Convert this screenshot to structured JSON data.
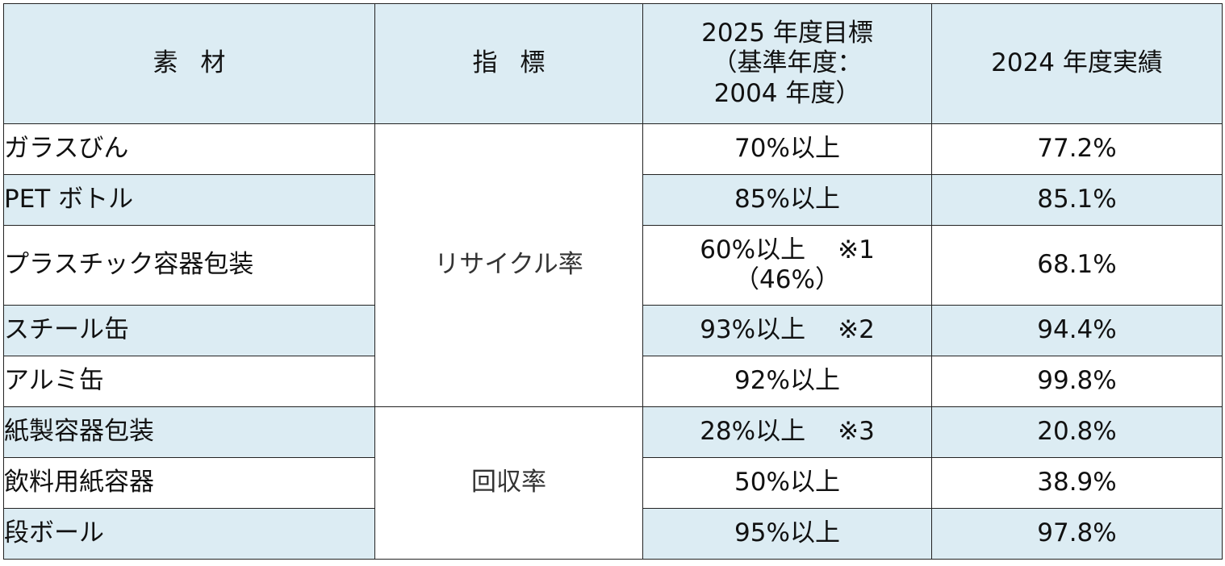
{
  "header": {
    "material": "素材",
    "indicator": "指標",
    "target_line1": "2025 年度目標",
    "target_line2": "（基準年度：",
    "target_line3": "2004 年度）",
    "result": "2024 年度実績"
  },
  "indicators": {
    "recycle": "リサイクル率",
    "collection": "回収率"
  },
  "rows": [
    {
      "material": "ガラスびん",
      "target": "70%以上",
      "note": "",
      "sub": "",
      "result": "77.2%"
    },
    {
      "material": "PET ボトル",
      "target": "85%以上",
      "note": "",
      "sub": "",
      "result": "85.1%"
    },
    {
      "material": "プラスチック容器包装",
      "target": "60%以上",
      "note": "※1",
      "sub": "（46%）",
      "result": "68.1%"
    },
    {
      "material": "スチール缶",
      "target": "93%以上",
      "note": "※2",
      "sub": "",
      "result": "94.4%"
    },
    {
      "material": "アルミ缶",
      "target": "92%以上",
      "note": "",
      "sub": "",
      "result": "99.8%"
    },
    {
      "material": "紙製容器包装",
      "target": "28%以上",
      "note": "※3",
      "sub": "",
      "result": "20.8%"
    },
    {
      "material": "飲料用紙容器",
      "target": "50%以上",
      "note": "",
      "sub": "",
      "result": "38.9%"
    },
    {
      "material": "段ボール",
      "target": "95%以上",
      "note": "",
      "sub": "",
      "result": "97.8%"
    }
  ],
  "colors": {
    "shade": "#dcecf3",
    "border": "#222222"
  }
}
